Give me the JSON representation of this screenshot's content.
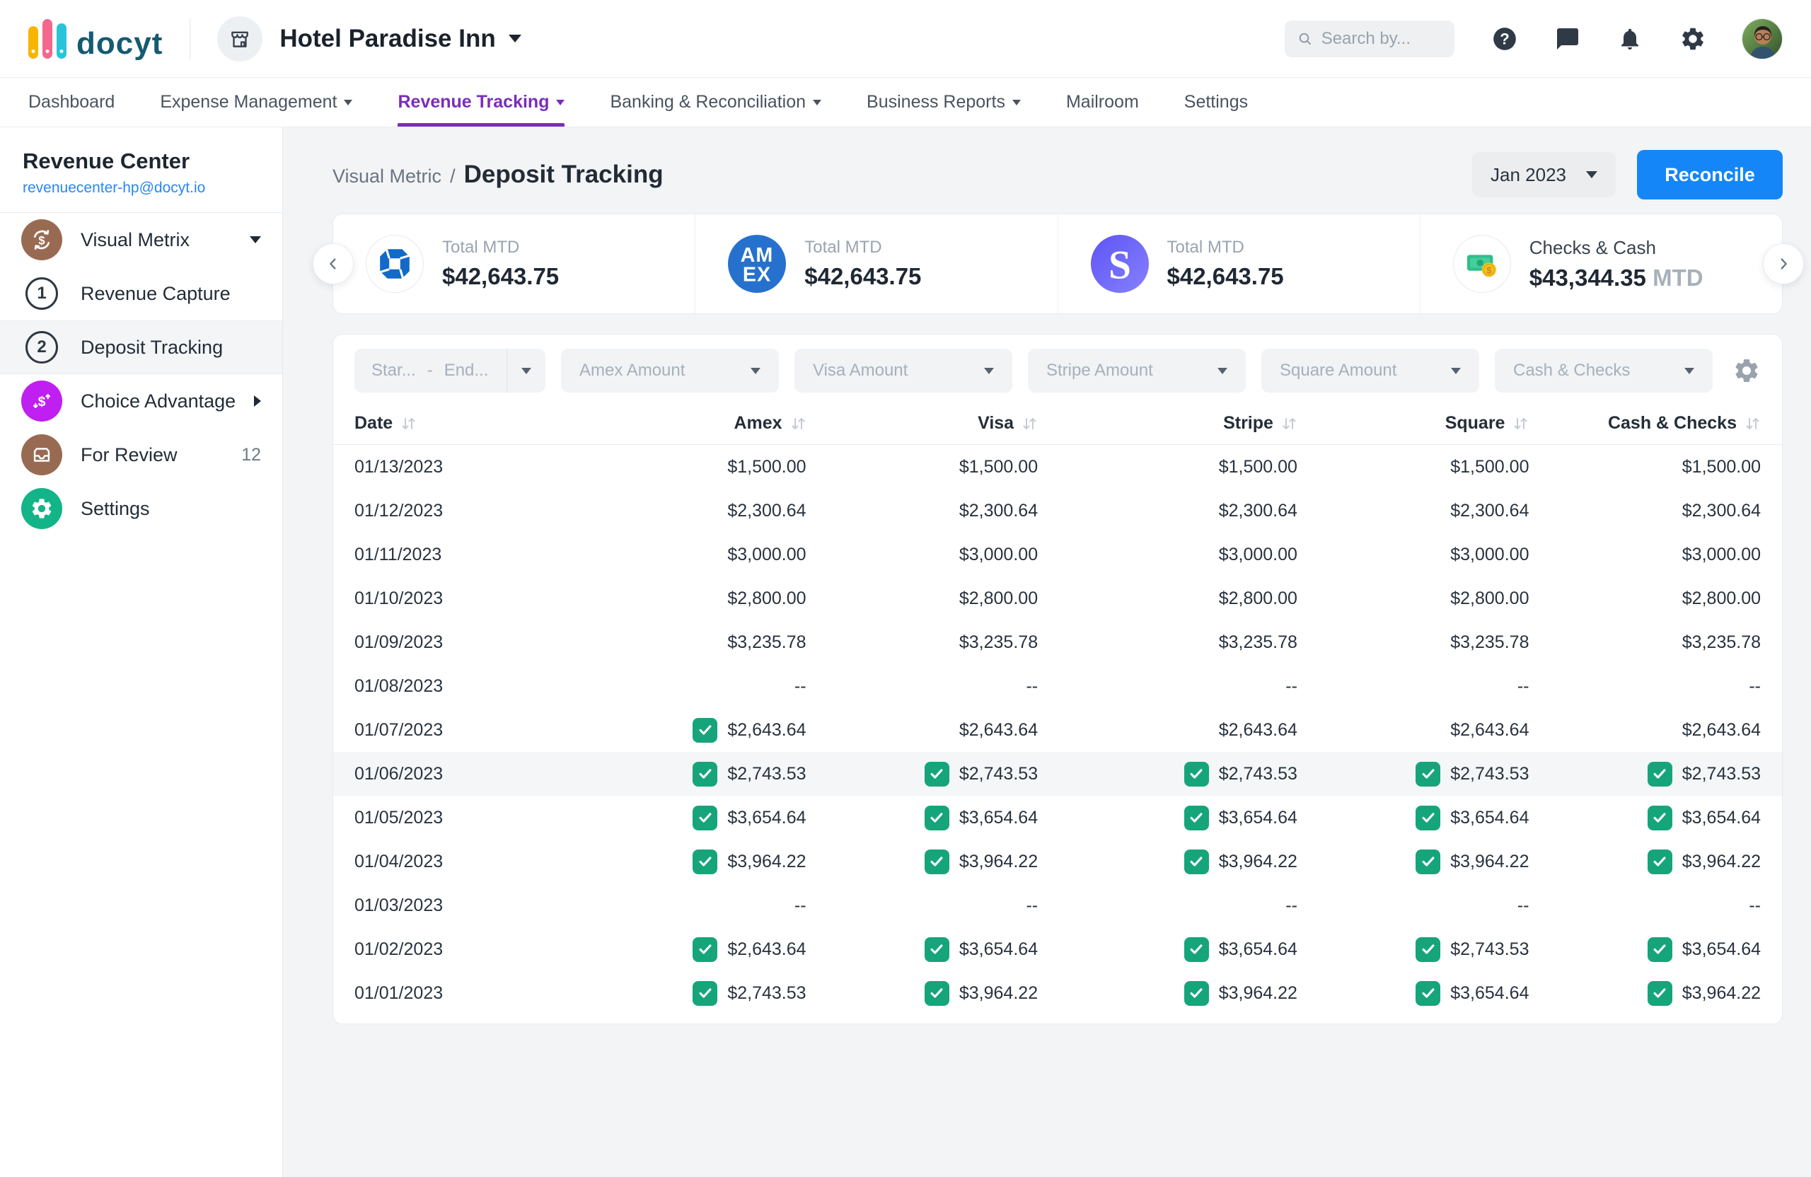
{
  "header": {
    "logo": "docyt",
    "business": {
      "name": "Hotel Paradise Inn"
    },
    "search": {
      "placeholder": "Search by..."
    }
  },
  "nav": {
    "items": [
      {
        "label": "Dashboard",
        "caret": false,
        "active": false
      },
      {
        "label": "Expense Management",
        "caret": true,
        "active": false
      },
      {
        "label": "Revenue Tracking",
        "caret": true,
        "active": true
      },
      {
        "label": "Banking & Reconciliation",
        "caret": true,
        "active": false
      },
      {
        "label": "Business Reports",
        "caret": true,
        "active": false
      },
      {
        "label": "Mailroom",
        "caret": false,
        "active": false
      },
      {
        "label": "Settings",
        "caret": false,
        "active": false
      }
    ]
  },
  "sidebar": {
    "title": "Revenue Center",
    "email": "revenuecenter-hp@docyt.io",
    "items": [
      {
        "label": "Visual Metrix"
      },
      {
        "label": "Revenue Capture",
        "number": "1"
      },
      {
        "label": "Deposit Tracking",
        "number": "2"
      },
      {
        "label": "Choice Advantage"
      },
      {
        "label": "For Review",
        "badge": "12"
      },
      {
        "label": "Settings"
      }
    ]
  },
  "page": {
    "breadcrumb": "Visual Metric",
    "separator": "/",
    "title": "Deposit Tracking",
    "period": "Jan 2023",
    "reconcile": "Reconcile"
  },
  "metric_cards": [
    {
      "brand": "chase",
      "label": "Total MTD",
      "value": "$42,643.75"
    },
    {
      "brand": "amex",
      "label": "Total MTD",
      "value": "$42,643.75"
    },
    {
      "brand": "stripe",
      "label": "Total MTD",
      "value": "$42,643.75"
    },
    {
      "brand": "checks-cash",
      "label": "Checks & Cash",
      "value": "$43,344.35",
      "suffix": "MTD"
    }
  ],
  "filters": {
    "date_range": {
      "start": "Star...",
      "sep": "-",
      "end": "End..."
    },
    "dropdowns": [
      "Amex Amount",
      "Visa Amount",
      "Stripe Amount",
      "Square Amount",
      "Cash & Checks"
    ]
  },
  "table": {
    "columns": [
      "Date",
      "Amex",
      "Visa",
      "Stripe",
      "Square",
      "Cash & Checks"
    ],
    "rows": [
      {
        "date": "01/13/2023",
        "highlighted": false,
        "cells": [
          {
            "v": "$1,500.00",
            "checked": false
          },
          {
            "v": "$1,500.00",
            "checked": false
          },
          {
            "v": "$1,500.00",
            "checked": false
          },
          {
            "v": "$1,500.00",
            "checked": false
          },
          {
            "v": "$1,500.00",
            "checked": false
          }
        ]
      },
      {
        "date": "01/12/2023",
        "highlighted": false,
        "cells": [
          {
            "v": "$2,300.64",
            "checked": false
          },
          {
            "v": "$2,300.64",
            "checked": false
          },
          {
            "v": "$2,300.64",
            "checked": false
          },
          {
            "v": "$2,300.64",
            "checked": false
          },
          {
            "v": "$2,300.64",
            "checked": false
          }
        ]
      },
      {
        "date": "01/11/2023",
        "highlighted": false,
        "cells": [
          {
            "v": "$3,000.00",
            "checked": false
          },
          {
            "v": "$3,000.00",
            "checked": false
          },
          {
            "v": "$3,000.00",
            "checked": false
          },
          {
            "v": "$3,000.00",
            "checked": false
          },
          {
            "v": "$3,000.00",
            "checked": false
          }
        ]
      },
      {
        "date": "01/10/2023",
        "highlighted": false,
        "cells": [
          {
            "v": "$2,800.00",
            "checked": false
          },
          {
            "v": "$2,800.00",
            "checked": false
          },
          {
            "v": "$2,800.00",
            "checked": false
          },
          {
            "v": "$2,800.00",
            "checked": false
          },
          {
            "v": "$2,800.00",
            "checked": false
          }
        ]
      },
      {
        "date": "01/09/2023",
        "highlighted": false,
        "cells": [
          {
            "v": "$3,235.78",
            "checked": false
          },
          {
            "v": "$3,235.78",
            "checked": false
          },
          {
            "v": "$3,235.78",
            "checked": false
          },
          {
            "v": "$3,235.78",
            "checked": false
          },
          {
            "v": "$3,235.78",
            "checked": false
          }
        ]
      },
      {
        "date": "01/08/2023",
        "highlighted": false,
        "cells": [
          {
            "v": "--",
            "checked": false
          },
          {
            "v": "--",
            "checked": false
          },
          {
            "v": "--",
            "checked": false
          },
          {
            "v": "--",
            "checked": false
          },
          {
            "v": "--",
            "checked": false
          }
        ]
      },
      {
        "date": "01/07/2023",
        "highlighted": false,
        "cells": [
          {
            "v": "$2,643.64",
            "checked": true
          },
          {
            "v": "$2,643.64",
            "checked": false
          },
          {
            "v": "$2,643.64",
            "checked": false
          },
          {
            "v": "$2,643.64",
            "checked": false
          },
          {
            "v": "$2,643.64",
            "checked": false
          }
        ]
      },
      {
        "date": "01/06/2023",
        "highlighted": true,
        "cells": [
          {
            "v": "$2,743.53",
            "checked": true
          },
          {
            "v": "$2,743.53",
            "checked": true
          },
          {
            "v": "$2,743.53",
            "checked": true
          },
          {
            "v": "$2,743.53",
            "checked": true
          },
          {
            "v": "$2,743.53",
            "checked": true
          }
        ]
      },
      {
        "date": "01/05/2023",
        "highlighted": false,
        "cells": [
          {
            "v": "$3,654.64",
            "checked": true
          },
          {
            "v": "$3,654.64",
            "checked": true
          },
          {
            "v": "$3,654.64",
            "checked": true
          },
          {
            "v": "$3,654.64",
            "checked": true
          },
          {
            "v": "$3,654.64",
            "checked": true
          }
        ]
      },
      {
        "date": "01/04/2023",
        "highlighted": false,
        "cells": [
          {
            "v": "$3,964.22",
            "checked": true
          },
          {
            "v": "$3,964.22",
            "checked": true
          },
          {
            "v": "$3,964.22",
            "checked": true
          },
          {
            "v": "$3,964.22",
            "checked": true
          },
          {
            "v": "$3,964.22",
            "checked": true
          }
        ]
      },
      {
        "date": "01/03/2023",
        "highlighted": false,
        "cells": [
          {
            "v": "--",
            "checked": false
          },
          {
            "v": "--",
            "checked": false
          },
          {
            "v": "--",
            "checked": false
          },
          {
            "v": "--",
            "checked": false
          },
          {
            "v": "--",
            "checked": false
          }
        ]
      },
      {
        "date": "01/02/2023",
        "highlighted": false,
        "cells": [
          {
            "v": "$2,643.64",
            "checked": true
          },
          {
            "v": "$3,654.64",
            "checked": true
          },
          {
            "v": "$3,654.64",
            "checked": true
          },
          {
            "v": "$2,743.53",
            "checked": true
          },
          {
            "v": "$3,654.64",
            "checked": true
          }
        ]
      },
      {
        "date": "01/01/2023",
        "highlighted": false,
        "cells": [
          {
            "v": "$2,743.53",
            "checked": true
          },
          {
            "v": "$3,964.22",
            "checked": true
          },
          {
            "v": "$3,964.22",
            "checked": true
          },
          {
            "v": "$3,654.64",
            "checked": true
          },
          {
            "v": "$3,964.22",
            "checked": true
          }
        ]
      }
    ]
  }
}
